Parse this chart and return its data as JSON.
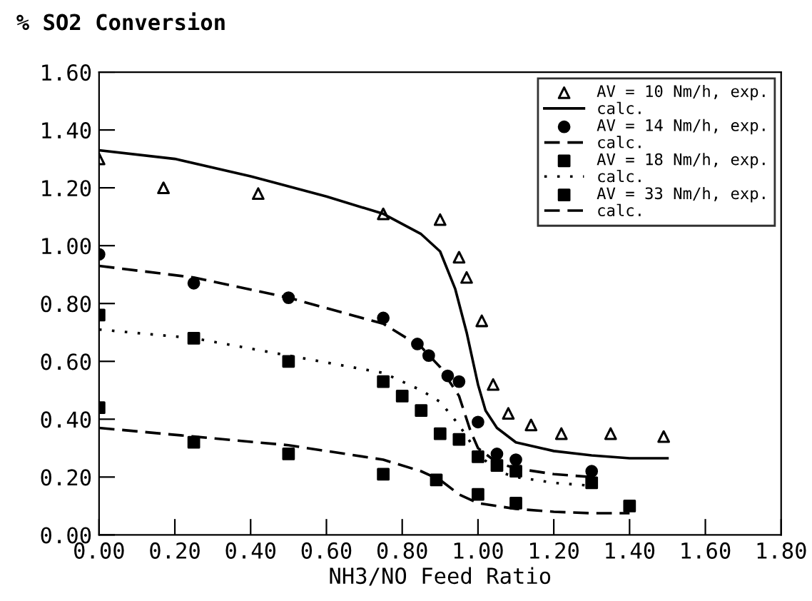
{
  "chart_data": {
    "type": "scatter",
    "title": "% SO2 Conversion",
    "xlabel": "NH3/NO Feed Ratio",
    "xlim": [
      0,
      1.8
    ],
    "ylim": [
      0,
      1.6
    ],
    "xticks": [
      {
        "value": 0,
        "label": "0.00"
      },
      {
        "value": 0.2,
        "label": "0.20"
      },
      {
        "value": 0.4,
        "label": "0.40"
      },
      {
        "value": 0.6,
        "label": "0.60"
      },
      {
        "value": 0.8,
        "label": "0.80"
      },
      {
        "value": 1.0,
        "label": "1.00"
      },
      {
        "value": 1.2,
        "label": "1.20"
      },
      {
        "value": 1.4,
        "label": "1.40"
      },
      {
        "value": 1.6,
        "label": "1.60"
      },
      {
        "value": 1.8,
        "label": "1.80"
      }
    ],
    "yticks": [
      {
        "value": 0,
        "label": "0.00"
      },
      {
        "value": 0.2,
        "label": "0.20"
      },
      {
        "value": 0.4,
        "label": "0.40"
      },
      {
        "value": 0.6,
        "label": "0.60"
      },
      {
        "value": 0.8,
        "label": "0.80"
      },
      {
        "value": 1.0,
        "label": "1.00"
      },
      {
        "value": 1.2,
        "label": "1.20"
      },
      {
        "value": 1.4,
        "label": "1.40"
      },
      {
        "value": 1.6,
        "label": "1.60"
      }
    ],
    "grid": false,
    "legend": "top right",
    "series": [
      {
        "name": "AV = 10 Nm/h, exp.",
        "marker": "triangle",
        "color": "#000000",
        "x": [
          0,
          0.17,
          0.42,
          0.75,
          0.9,
          0.95,
          0.97,
          1.01,
          1.04,
          1.08,
          1.14,
          1.22,
          1.35,
          1.49
        ],
        "values": [
          1.3,
          1.2,
          1.18,
          1.11,
          1.09,
          0.96,
          0.89,
          0.74,
          0.52,
          0.42,
          0.38,
          0.35,
          0.35,
          0.34
        ]
      },
      {
        "name": "calc.",
        "type": "line",
        "line_style": "solid",
        "color": "#000000",
        "x": [
          0,
          0.2,
          0.4,
          0.6,
          0.75,
          0.85,
          0.9,
          0.94,
          0.97,
          1.0,
          1.02,
          1.05,
          1.1,
          1.2,
          1.3,
          1.4,
          1.5
        ],
        "values": [
          1.33,
          1.3,
          1.24,
          1.17,
          1.11,
          1.04,
          0.98,
          0.85,
          0.7,
          0.52,
          0.43,
          0.37,
          0.32,
          0.29,
          0.275,
          0.265,
          0.265
        ]
      },
      {
        "name": "AV = 14 Nm/h, exp.",
        "marker": "circle",
        "color": "#000000",
        "x": [
          0,
          0.25,
          0.5,
          0.75,
          0.84,
          0.87,
          0.92,
          0.95,
          1.0,
          1.05,
          1.1,
          1.3
        ],
        "values": [
          0.97,
          0.87,
          0.82,
          0.75,
          0.66,
          0.62,
          0.55,
          0.53,
          0.39,
          0.28,
          0.26,
          0.22
        ]
      },
      {
        "name": "calc.",
        "type": "line",
        "line_style": "dashed",
        "color": "#000000",
        "x": [
          0,
          0.25,
          0.5,
          0.75,
          0.85,
          0.9,
          0.95,
          0.98,
          1.0,
          1.05,
          1.1,
          1.2,
          1.3
        ],
        "values": [
          0.93,
          0.89,
          0.82,
          0.73,
          0.65,
          0.58,
          0.48,
          0.36,
          0.3,
          0.25,
          0.23,
          0.21,
          0.2
        ]
      },
      {
        "name": "AV = 18 Nm/h, exp.",
        "marker": "square",
        "color": "#000000",
        "x": [
          0,
          0.25,
          0.5,
          0.75,
          0.8,
          0.85,
          0.9,
          0.95,
          1.0,
          1.05,
          1.1,
          1.3
        ],
        "values": [
          0.76,
          0.68,
          0.6,
          0.53,
          0.48,
          0.43,
          0.35,
          0.33,
          0.27,
          0.24,
          0.22,
          0.18
        ]
      },
      {
        "name": "calc.",
        "type": "line",
        "line_style": "dotted",
        "color": "#000000",
        "x": [
          0,
          0.25,
          0.5,
          0.75,
          0.85,
          0.9,
          0.95,
          1.0,
          1.05,
          1.1,
          1.2,
          1.3
        ],
        "values": [
          0.71,
          0.68,
          0.62,
          0.56,
          0.5,
          0.46,
          0.38,
          0.28,
          0.22,
          0.2,
          0.18,
          0.17
        ]
      },
      {
        "name": "AV = 33 Nm/h, exp.",
        "marker": "square",
        "color": "#000000",
        "x": [
          0,
          0.25,
          0.5,
          0.75,
          0.89,
          1.0,
          1.1,
          1.4
        ],
        "values": [
          0.44,
          0.32,
          0.28,
          0.21,
          0.19,
          0.14,
          0.11,
          0.1
        ]
      },
      {
        "name": "calc.",
        "type": "line",
        "line_style": "dashed",
        "color": "#000000",
        "x": [
          0,
          0.25,
          0.5,
          0.75,
          0.85,
          0.9,
          0.95,
          1.0,
          1.1,
          1.2,
          1.3,
          1.4
        ],
        "values": [
          0.37,
          0.34,
          0.31,
          0.26,
          0.22,
          0.19,
          0.14,
          0.11,
          0.09,
          0.08,
          0.075,
          0.075
        ]
      }
    ]
  }
}
